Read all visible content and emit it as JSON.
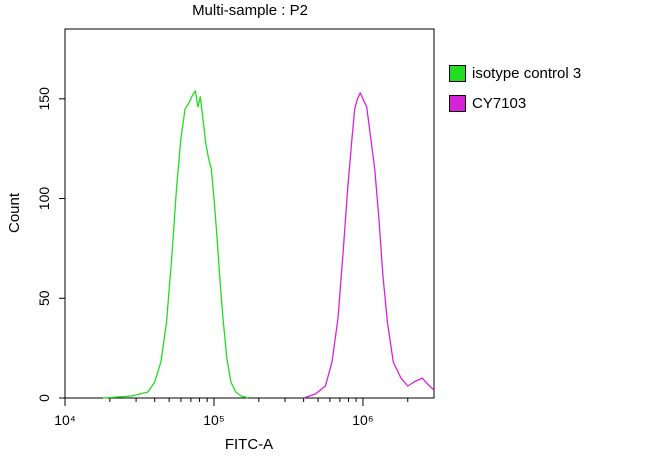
{
  "chart_data": {
    "type": "line",
    "title": "Multi-sample : P2",
    "xlabel": "FITC-A",
    "ylabel": "Count",
    "x_scale": "log",
    "xlim": [
      10000,
      3000000
    ],
    "ylim": [
      0,
      185
    ],
    "x_ticks": [
      {
        "value": 10000,
        "label": "10⁴"
      },
      {
        "value": 100000,
        "label": "10⁵"
      },
      {
        "value": 1000000,
        "label": "10⁶"
      }
    ],
    "y_ticks": [
      0,
      50,
      100,
      150
    ],
    "grid": false,
    "legend_position": "right",
    "series": [
      {
        "name": "isotype control 3",
        "color": "#22dd22",
        "x": [
          18000,
          28000,
          36000,
          40000,
          44000,
          48000,
          52000,
          56000,
          60000,
          64000,
          68000,
          72000,
          75000,
          78000,
          81000,
          85000,
          88000,
          92000,
          96000,
          100000,
          105000,
          110000,
          115000,
          122000,
          130000,
          140000,
          152000,
          170000
        ],
        "y": [
          0,
          1,
          3,
          8,
          18,
          38,
          70,
          105,
          130,
          145,
          148,
          152,
          154,
          146,
          151,
          138,
          128,
          120,
          115,
          100,
          80,
          58,
          40,
          20,
          8,
          3,
          1,
          0
        ]
      },
      {
        "name": "CY7103",
        "color": "#d822d8",
        "x": [
          400000,
          480000,
          560000,
          620000,
          680000,
          740000,
          790000,
          840000,
          880000,
          920000,
          960000,
          1000000,
          1060000,
          1120000,
          1200000,
          1280000,
          1360000,
          1460000,
          1600000,
          1800000,
          2000000,
          2200000,
          2500000,
          2800000,
          3000000
        ],
        "y": [
          0,
          2,
          6,
          18,
          40,
          75,
          105,
          128,
          145,
          150,
          153,
          150,
          146,
          132,
          115,
          90,
          62,
          38,
          18,
          10,
          6,
          8,
          10,
          6,
          4
        ]
      }
    ]
  }
}
